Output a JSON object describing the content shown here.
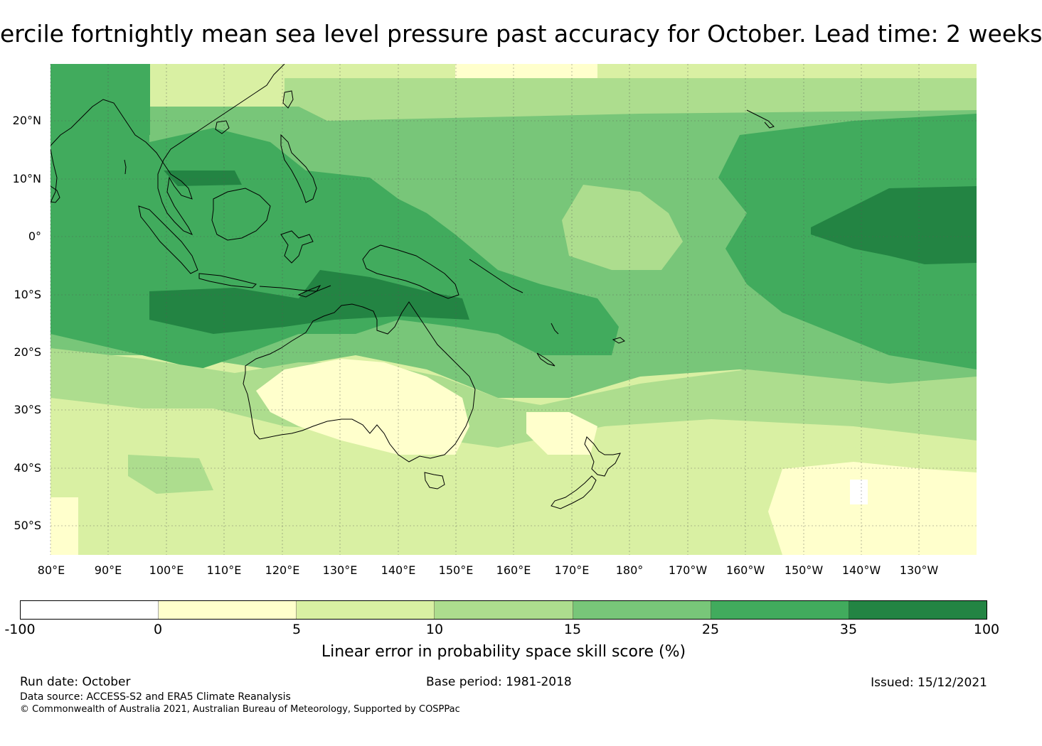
{
  "title": "ercile fortnightly mean sea level pressure past accuracy for October. Lead time: 2 weeks",
  "map": {
    "lat_labels": [
      "20°N",
      "10°N",
      "0°",
      "10°S",
      "20°S",
      "30°S",
      "40°S",
      "50°S"
    ],
    "lon_labels": [
      "80°E",
      "90°E",
      "100°E",
      "110°E",
      "120°E",
      "130°E",
      "140°E",
      "150°E",
      "160°E",
      "170°E",
      "180°",
      "170°W",
      "160°W",
      "150°W",
      "140°W",
      "130°W"
    ],
    "lat_range": [
      -55,
      30
    ],
    "lon_range": [
      80,
      240
    ]
  },
  "colorbar": {
    "ticks": [
      "-100",
      "0",
      "5",
      "10",
      "15",
      "25",
      "35",
      "100"
    ],
    "colors": [
      "#ffffff",
      "#ffffcc",
      "#d9f0a3",
      "#addd8e",
      "#78c679",
      "#41ab5d",
      "#238443"
    ],
    "label": "Linear error in probability space skill score (%)"
  },
  "footer": {
    "run_date": "Run date: October",
    "base_period": "Base period: 1981-2018",
    "issued": "Issued: 15/12/2021",
    "data_source": "Data source: ACCESS-S2 and ERA5 Climate Reanalysis",
    "copyright": "© Commonwealth of Australia 2021, Australian Bureau of Meteorology, Supported by COSPPac"
  }
}
